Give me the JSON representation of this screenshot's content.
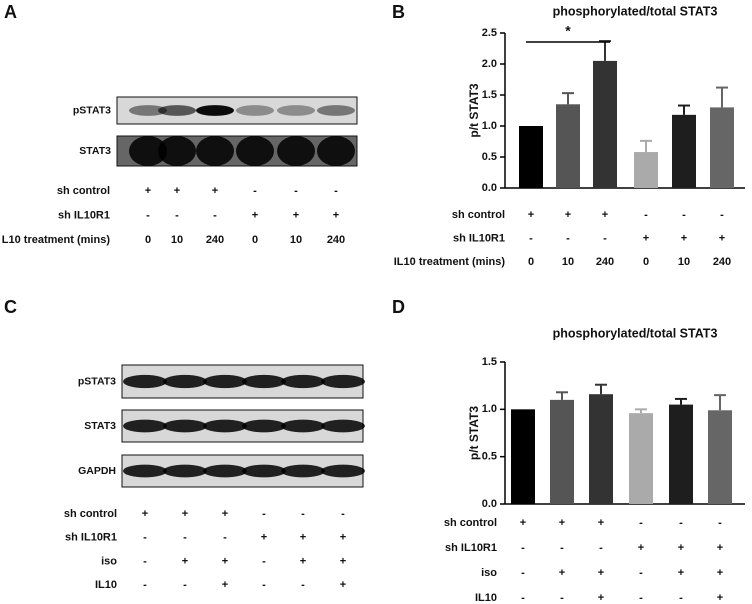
{
  "panel_labels": [
    "A",
    "B",
    "C",
    "D"
  ],
  "blots": [
    {
      "rows": [
        "pSTAT3",
        "STAT3"
      ],
      "conditions": [
        {
          "label": "sh control",
          "values": [
            "+",
            "+",
            "+",
            "-",
            "-",
            "-"
          ]
        },
        {
          "label": "sh IL10R1",
          "values": [
            "-",
            "-",
            "-",
            "+",
            "+",
            "+"
          ]
        },
        {
          "label": "L10 treatment (mins)",
          "values": [
            "0",
            "10",
            "240",
            "0",
            "10",
            "240"
          ]
        }
      ]
    },
    {
      "rows": [
        "pSTAT3",
        "STAT3",
        "GAPDH"
      ],
      "conditions": [
        {
          "label": "sh control",
          "values": [
            "+",
            "+",
            "+",
            "-",
            "-",
            "-"
          ]
        },
        {
          "label": "sh IL10R1",
          "values": [
            "-",
            "-",
            "-",
            "+",
            "+",
            "+"
          ]
        },
        {
          "label": "iso",
          "values": [
            "-",
            "+",
            "+",
            "-",
            "+",
            "+"
          ]
        },
        {
          "label": "IL10",
          "values": [
            "-",
            "-",
            "+",
            "-",
            "-",
            "+"
          ]
        }
      ]
    }
  ],
  "chart_data": [
    {
      "type": "bar",
      "title": "phosphorylated/total STAT3",
      "ylabel": "p/t STAT3",
      "values": [
        1.0,
        1.35,
        2.05,
        0.58,
        1.18,
        1.3
      ],
      "errors": [
        null,
        0.18,
        0.32,
        0.18,
        0.15,
        0.32
      ],
      "colors": [
        "#000000",
        "#555555",
        "#333333",
        "#aaaaaa",
        "#1e1e1e",
        "#666666"
      ],
      "ylim": [
        0,
        2.5
      ],
      "yticks": [
        {
          "value": 0,
          "label": "0.0"
        },
        0.5,
        {
          "value": 1,
          "label": "1.0"
        },
        1.5,
        {
          "value": 2,
          "label": "2.0"
        },
        2.5
      ],
      "annotation": "*",
      "conditions": [
        {
          "label": "sh control",
          "values": [
            "+",
            "+",
            "+",
            "-",
            "-",
            "-"
          ]
        },
        {
          "label": "sh IL10R1",
          "values": [
            "-",
            "-",
            "-",
            "+",
            "+",
            "+"
          ]
        },
        {
          "label": "IL10 treatment (mins)",
          "values": [
            "0",
            "10",
            "240",
            "0",
            "10",
            "240"
          ]
        }
      ]
    },
    {
      "type": "bar",
      "title": "phosphorylated/total STAT3",
      "ylabel": "p/t STAT3",
      "values": [
        1.0,
        1.1,
        1.16,
        0.96,
        1.05,
        0.99
      ],
      "errors": [
        null,
        0.08,
        0.1,
        0.04,
        0.06,
        0.16
      ],
      "colors": [
        "#000000",
        "#555555",
        "#333333",
        "#aaaaaa",
        "#1e1e1e",
        "#666666"
      ],
      "ylim": [
        0,
        1.5
      ],
      "yticks": [
        {
          "value": 0,
          "label": "0.0"
        },
        0.5,
        {
          "value": 1,
          "label": "1.0"
        },
        1.5
      ],
      "conditions": [
        {
          "label": "sh control",
          "values": [
            "+",
            "+",
            "+",
            "-",
            "-",
            "-"
          ]
        },
        {
          "label": "sh IL10R1",
          "values": [
            "-",
            "-",
            "-",
            "+",
            "+",
            "+"
          ]
        },
        {
          "label": "iso",
          "values": [
            "-",
            "+",
            "+",
            "-",
            "+",
            "+"
          ]
        },
        {
          "label": "IL10",
          "values": [
            "-",
            "-",
            "+",
            "-",
            "-",
            "+"
          ]
        }
      ]
    }
  ]
}
